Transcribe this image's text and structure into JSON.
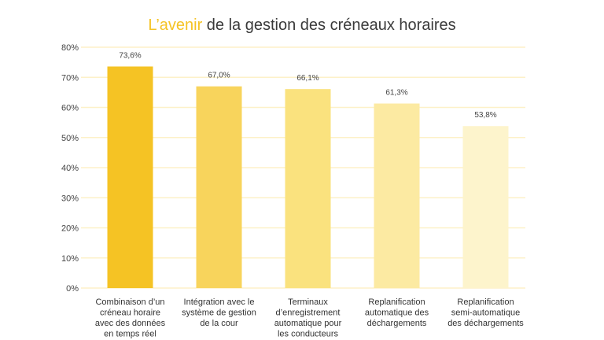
{
  "chart_data": {
    "type": "bar",
    "title_highlight": "L’avenir",
    "title_rest": " de la gestion des créneaux horaires",
    "xlabel": "",
    "ylabel": "",
    "ylim": [
      0,
      80
    ],
    "yticks": [
      0,
      10,
      20,
      30,
      40,
      50,
      60,
      70,
      80
    ],
    "ytick_labels": [
      "0%",
      "10%",
      "20%",
      "30%",
      "40%",
      "50%",
      "60%",
      "70%",
      "80%"
    ],
    "grid": true,
    "categories": [
      [
        "Combinaison d’un",
        "créneau horaire",
        "avec des données",
        "en temps réel"
      ],
      [
        "Intégration avec le",
        "système de gestion",
        "de la cour"
      ],
      [
        "Terminaux",
        "d’enregistrement",
        "automatique pour",
        "les conducteurs"
      ],
      [
        "Replanification",
        "automatique des",
        "déchargements"
      ],
      [
        "Replanification",
        "semi-automatique",
        "des déchargements"
      ]
    ],
    "values": [
      73.6,
      67.0,
      66.1,
      61.3,
      53.8
    ],
    "value_labels": [
      "73,6%",
      "67,0%",
      "66,1%",
      "61,3%",
      "53,8%"
    ],
    "colors": [
      "#F5C324",
      "#F8D45C",
      "#FAE27E",
      "#FCEAA2",
      "#FDF4CC"
    ],
    "accent": "#F5C324",
    "grid_color": "#FDF1C8"
  }
}
